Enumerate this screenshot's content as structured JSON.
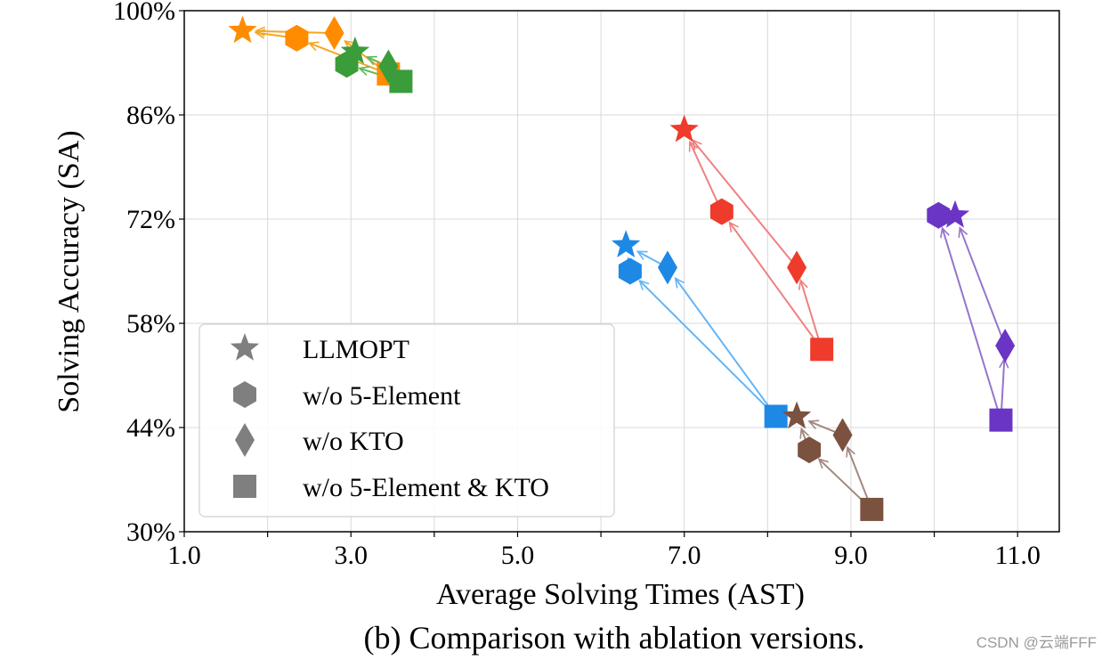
{
  "chart_data": {
    "type": "scatter",
    "xlabel": "Average Solving Times (AST)",
    "ylabel": "Solving Accuracy (SA)",
    "xlim": [
      1.0,
      11.5
    ],
    "ylim": [
      30,
      100
    ],
    "xticks": [
      1.0,
      3.0,
      5.0,
      7.0,
      9.0,
      11.0
    ],
    "xtick_labels": [
      "1.0",
      "3.0",
      "5.0",
      "7.0",
      "9.0",
      "11.0"
    ],
    "yticks": [
      30,
      44,
      58,
      72,
      86,
      100
    ],
    "ytick_labels": [
      "30%",
      "44%",
      "58%",
      "72%",
      "86%",
      "100%"
    ],
    "grid": true,
    "caption": "(b) Comparison with ablation versions.",
    "legend_position": "lower-left",
    "legend": [
      {
        "marker": "star",
        "label": "LLMOPT"
      },
      {
        "marker": "hexagon",
        "label": "w/o 5-Element"
      },
      {
        "marker": "diamond",
        "label": "w/o KTO"
      },
      {
        "marker": "square",
        "label": "w/o 5-Element & KTO"
      }
    ],
    "groups": [
      {
        "color": "#ff8c00",
        "line_color": "#f5a623",
        "star": [
          1.7,
          97.3
        ],
        "hexagon": [
          2.35,
          96.3
        ],
        "diamond": [
          2.8,
          97.0
        ],
        "square": [
          3.45,
          91.5
        ]
      },
      {
        "color": "#3a9c3a",
        "line_color": "#5cb85c",
        "star": [
          3.05,
          94.5
        ],
        "hexagon": [
          2.95,
          92.8
        ],
        "diamond": [
          3.45,
          92.5
        ],
        "square": [
          3.6,
          90.5
        ]
      },
      {
        "color": "#ef3b2c",
        "line_color": "#f08080",
        "star": [
          7.0,
          84.0
        ],
        "hexagon": [
          7.45,
          73.0
        ],
        "diamond": [
          8.35,
          65.5
        ],
        "square": [
          8.65,
          54.5
        ]
      },
      {
        "color": "#1e88e5",
        "line_color": "#64b5f6",
        "star": [
          6.3,
          68.5
        ],
        "hexagon": [
          6.35,
          65.0
        ],
        "diamond": [
          6.8,
          65.5
        ],
        "square": [
          8.1,
          45.5
        ]
      },
      {
        "color": "#7b5140",
        "line_color": "#a1887f",
        "star": [
          8.35,
          45.5
        ],
        "hexagon": [
          8.5,
          41.0
        ],
        "diamond": [
          8.9,
          43.0
        ],
        "square": [
          9.25,
          33.0
        ]
      },
      {
        "color": "#6a35c4",
        "line_color": "#9575cd",
        "star": [
          10.25,
          72.5
        ],
        "hexagon": [
          10.05,
          72.5
        ],
        "diamond": [
          10.85,
          55.0
        ],
        "square": [
          10.8,
          45.0
        ]
      }
    ]
  },
  "watermark": "CSDN @云端FFF"
}
